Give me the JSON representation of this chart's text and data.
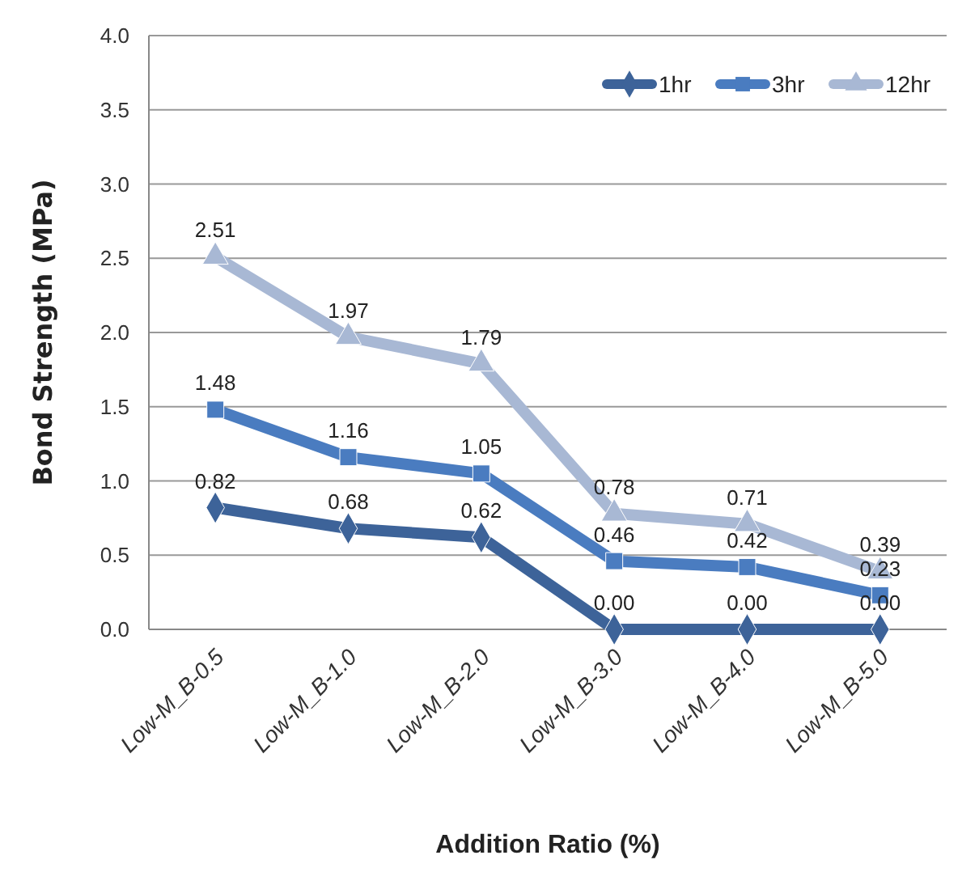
{
  "chart_data": {
    "type": "line",
    "xlabel": "Addition Ratio (%)",
    "ylabel": "Bond Strength (MPa)",
    "categories": [
      "Low-M_B-0.5",
      "Low-M_B-1.0",
      "Low-M_B-2.0",
      "Low-M_B-3.0",
      "Low-M_B-4.0",
      "Low-M_B-5.0"
    ],
    "ylim": [
      0,
      4
    ],
    "yticks": [
      {
        "value": 0,
        "label": "0.0"
      },
      {
        "value": 0.5,
        "label": "0.5"
      },
      {
        "value": 1,
        "label": "1.0"
      },
      {
        "value": 1.5,
        "label": "1.5"
      },
      {
        "value": 2,
        "label": "2.0"
      },
      {
        "value": 2.5,
        "label": "2.5"
      },
      {
        "value": 3,
        "label": "3.0"
      },
      {
        "value": 3.5,
        "label": "3.5"
      },
      {
        "value": 4,
        "label": "4.0"
      }
    ],
    "grid": "y",
    "legend": "top right",
    "series": [
      {
        "name": "1hr",
        "color": "#3d6399",
        "marker": "diamond",
        "values": [
          0.82,
          0.68,
          0.62,
          0,
          0,
          0
        ],
        "value_labels": [
          "0.82",
          "0.68",
          "0.62",
          "0.00",
          "0.00",
          "0.00"
        ]
      },
      {
        "name": "3hr",
        "color": "#4a7cc0",
        "marker": "square",
        "values": [
          1.48,
          1.16,
          1.05,
          0.46,
          0.42,
          0.23
        ],
        "value_labels": [
          "1.48",
          "1.16",
          "1.05",
          "0.46",
          "0.42",
          "0.23"
        ]
      },
      {
        "name": "12hr",
        "color": "#a8b8d4",
        "marker": "triangle",
        "values": [
          2.51,
          1.97,
          1.79,
          0.78,
          0.71,
          0.39
        ],
        "value_labels": [
          "2.51",
          "1.97",
          "1.79",
          "0.78",
          "0.71",
          "0.39"
        ]
      }
    ]
  }
}
